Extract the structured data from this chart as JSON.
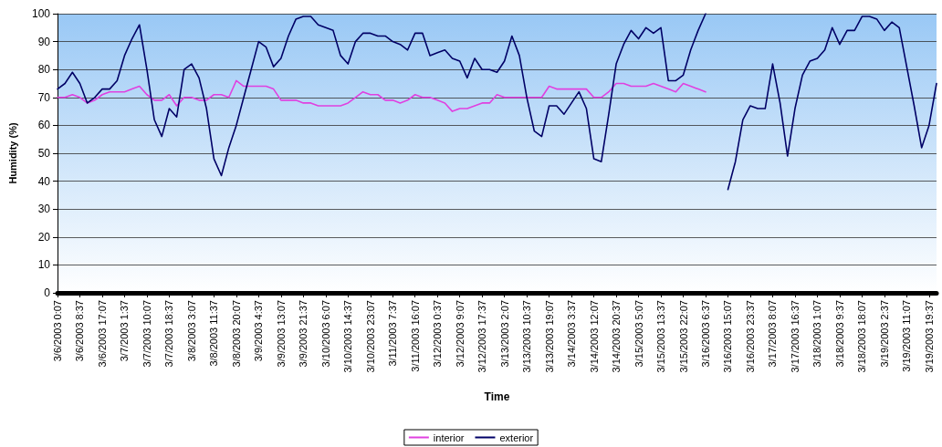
{
  "chart_data": {
    "type": "line",
    "xlabel": "Time",
    "ylabel": "Humidity (%)",
    "categories": [
      "3/6/2003 0:07",
      null,
      null,
      "3/6/2003 8:37",
      null,
      null,
      "3/6/2003 17:07",
      null,
      null,
      "3/7/2003 1:37",
      null,
      null,
      "3/7/2003 10:07",
      null,
      null,
      "3/7/2003 18:37",
      null,
      null,
      "3/8/2003 3:07",
      null,
      null,
      "3/8/2003 11:37",
      null,
      null,
      "3/8/2003 20:07",
      null,
      null,
      "3/9/2003 4:37",
      null,
      null,
      "3/9/2003 13:07",
      null,
      null,
      "3/9/2003 21:37",
      null,
      null,
      "3/10/2003 6:07",
      null,
      null,
      "3/10/2003 14:37",
      null,
      null,
      "3/10/2003 23:07",
      null,
      null,
      "3/11/2003 7:37",
      null,
      null,
      "3/11/2003 16:07",
      null,
      null,
      "3/12/2003 0:37",
      null,
      null,
      "3/12/2003 9:07",
      null,
      null,
      "3/12/2003 17:37",
      null,
      null,
      "3/13/2003 2:07",
      null,
      null,
      "3/13/2003 10:37",
      null,
      null,
      "3/13/2003 19:07",
      null,
      null,
      "3/14/2003 3:37",
      null,
      null,
      "3/14/2003 12:07",
      null,
      null,
      "3/14/2003 20:37",
      null,
      null,
      "3/15/2003 5:07",
      null,
      null,
      "3/15/2003 13:37",
      null,
      null,
      "3/15/2003 22:07",
      null,
      null,
      "3/16/2003 6:37",
      null,
      null,
      "3/16/2003 15:07",
      null,
      null,
      "3/16/2003 23:37",
      null,
      null,
      "3/17/2003 8:07",
      null,
      null,
      "3/17/2003 16:37",
      null,
      null,
      "3/18/2003 1:07",
      null,
      null,
      "3/18/2003 9:37",
      null,
      null,
      "3/18/2003 18:07",
      null,
      null,
      "3/19/2003 2:37",
      null,
      null,
      "3/19/2003 11:07",
      null,
      null,
      "3/19/2003 19:37",
      null
    ],
    "series": [
      {
        "name": "interior",
        "color": "#e040e0",
        "values": [
          70,
          70,
          71,
          70,
          68,
          69,
          71,
          72,
          72,
          72,
          73,
          74,
          71,
          69,
          69,
          71,
          67,
          70,
          70,
          69,
          69,
          71,
          71,
          70,
          76,
          74,
          74,
          74,
          74,
          73,
          69,
          69,
          69,
          68,
          68,
          67,
          67,
          67,
          67,
          68,
          70,
          72,
          71,
          71,
          69,
          69,
          68,
          69,
          71,
          70,
          70,
          69,
          68,
          65,
          66,
          66,
          67,
          68,
          68,
          71,
          70,
          70,
          70,
          70,
          70,
          70,
          74,
          73,
          73,
          73,
          73,
          73,
          70,
          70,
          72,
          75,
          75,
          74,
          74,
          74,
          75,
          74,
          73,
          72,
          75,
          74,
          73,
          72,
          null,
          null,
          null,
          null,
          null,
          null,
          null,
          null,
          null,
          null,
          null,
          null,
          null,
          null,
          null,
          null,
          null,
          null,
          null,
          null,
          null,
          null,
          null,
          null,
          null,
          null,
          null,
          null,
          null,
          null,
          null
        ]
      },
      {
        "name": "exterior",
        "color": "#000066",
        "values": [
          73,
          75,
          79,
          75,
          68,
          70,
          73,
          73,
          76,
          85,
          91,
          96,
          80,
          62,
          56,
          66,
          63,
          80,
          82,
          77,
          66,
          48,
          42,
          52,
          60,
          70,
          80,
          90,
          88,
          81,
          84,
          92,
          98,
          99,
          99,
          96,
          95,
          94,
          85,
          82,
          90,
          93,
          93,
          92,
          92,
          90,
          89,
          87,
          93,
          93,
          85,
          86,
          87,
          84,
          83,
          77,
          84,
          80,
          80,
          79,
          83,
          92,
          85,
          70,
          58,
          56,
          67,
          67,
          64,
          68,
          72,
          66,
          48,
          47,
          64,
          82,
          89,
          94,
          91,
          95,
          93,
          95,
          76,
          76,
          78,
          87,
          94,
          100,
          null,
          null,
          37,
          47,
          62,
          67,
          66,
          66,
          82,
          68,
          49,
          66,
          78,
          83,
          84,
          87,
          95,
          89,
          94,
          94,
          99,
          99,
          98,
          94,
          97,
          95,
          81,
          67,
          52,
          60,
          75
        ]
      }
    ],
    "ylim": [
      0,
      100
    ],
    "yticks": [
      0,
      10,
      20,
      30,
      40,
      50,
      60,
      70,
      80,
      90,
      100
    ],
    "grid": "y",
    "legend": "bottom",
    "marker": "none",
    "line_style": "solid"
  }
}
